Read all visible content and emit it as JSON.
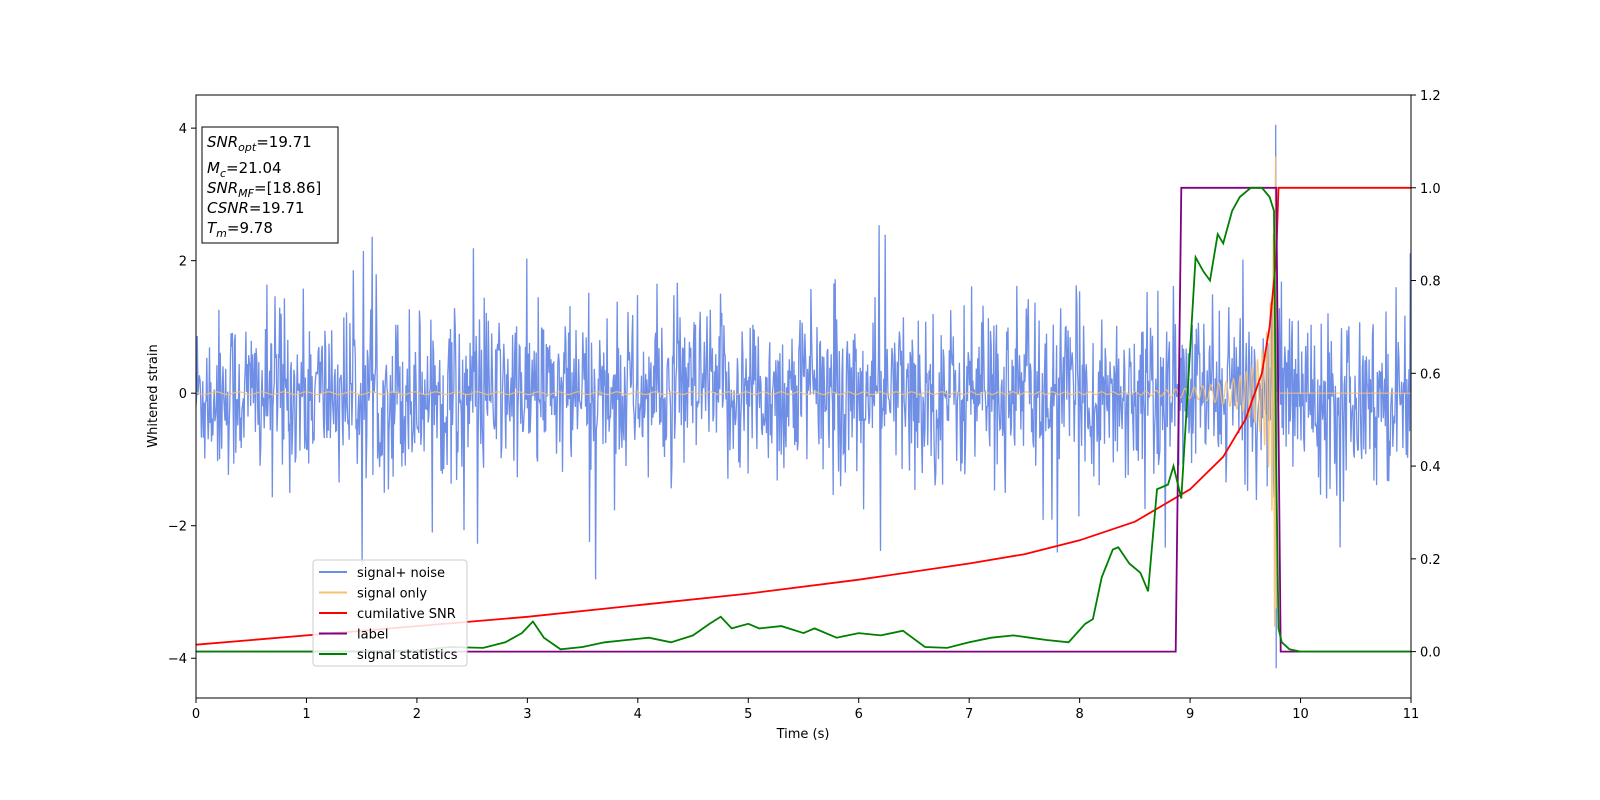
{
  "chart_data": {
    "type": "line",
    "xlabel": "Time (s)",
    "ylabel": "Whitened strain",
    "xlim": [
      0,
      11
    ],
    "ylim": [
      -4.6,
      4.5
    ],
    "y2lim": [
      -0.1,
      1.2
    ],
    "x_ticks": [
      0,
      1,
      2,
      3,
      4,
      5,
      6,
      7,
      8,
      9,
      10,
      11
    ],
    "y_ticks": [
      -4,
      -2,
      0,
      2,
      4
    ],
    "y2_ticks": [
      "0.0",
      "0.2",
      "0.4",
      "0.6",
      "0.8",
      "1.0",
      "1.2"
    ],
    "grid": false,
    "legend_placement": "lower-left",
    "annotation": {
      "lines": [
        {
          "sym": "SNR",
          "sub": "opt",
          "text": "=19.71"
        },
        {
          "sym": "M",
          "sub": "c",
          "text": "=21.04"
        },
        {
          "sym": "SNR",
          "sub": "MF",
          "text": "=[18.86]"
        },
        {
          "sym": "CSNR",
          "sub": "",
          "text": "=19.71"
        },
        {
          "sym": "T",
          "sub": "m",
          "text": "=9.78"
        }
      ]
    },
    "series": [
      {
        "name": "signal+ noise",
        "axis": "left",
        "color": "#6f8ee6",
        "description": "noise band roughly within ±1.5 with spikes up to about ±3.3, peak 4.0 near t=9.78",
        "noise_std": 0.62,
        "peak": {
          "x": 9.78,
          "y": 4.05,
          "min": -4.15
        }
      },
      {
        "name": "signal only",
        "axis": "left",
        "color": "#f5c070",
        "type": "chirp",
        "merger_time": 9.78,
        "start_amplitude": 0.02,
        "peak_amplitude": 3.6
      },
      {
        "name": "cumilative SNR",
        "axis": "right",
        "color": "#ff0000",
        "x": [
          0,
          1,
          2,
          3,
          4,
          5,
          6,
          7,
          7.5,
          8,
          8.5,
          9,
          9.3,
          9.5,
          9.65,
          9.72,
          9.78,
          9.8,
          11
        ],
        "y": [
          0.015,
          0.035,
          0.055,
          0.075,
          0.1,
          0.125,
          0.155,
          0.19,
          0.21,
          0.24,
          0.28,
          0.35,
          0.42,
          0.5,
          0.6,
          0.7,
          0.85,
          1.0,
          1.0
        ]
      },
      {
        "name": "label",
        "axis": "right",
        "color": "#800080",
        "x": [
          0,
          8.87,
          8.92,
          9.78,
          9.82,
          11
        ],
        "y": [
          0,
          0,
          1,
          1,
          0,
          0
        ]
      },
      {
        "name": "signal statistics",
        "axis": "right",
        "color": "#008000",
        "x": [
          0,
          1,
          2,
          2.3,
          2.6,
          2.8,
          2.95,
          3.05,
          3.15,
          3.3,
          3.5,
          3.7,
          3.9,
          4.1,
          4.3,
          4.5,
          4.65,
          4.75,
          4.85,
          5.0,
          5.1,
          5.3,
          5.5,
          5.6,
          5.8,
          6.0,
          6.2,
          6.4,
          6.6,
          6.8,
          7.0,
          7.2,
          7.4,
          7.55,
          7.7,
          7.9,
          8.05,
          8.12,
          8.2,
          8.3,
          8.35,
          8.45,
          8.55,
          8.62,
          8.7,
          8.8,
          8.85,
          8.92,
          9.0,
          9.05,
          9.12,
          9.18,
          9.25,
          9.3,
          9.38,
          9.45,
          9.55,
          9.65,
          9.72,
          9.76,
          9.78,
          9.8,
          9.83,
          9.9,
          10.0,
          11
        ],
        "y": [
          0,
          0,
          0.002,
          0.01,
          0.008,
          0.02,
          0.04,
          0.065,
          0.03,
          0.005,
          0.01,
          0.02,
          0.025,
          0.03,
          0.02,
          0.035,
          0.06,
          0.075,
          0.05,
          0.06,
          0.05,
          0.055,
          0.04,
          0.05,
          0.03,
          0.04,
          0.035,
          0.045,
          0.01,
          0.008,
          0.02,
          0.03,
          0.035,
          0.03,
          0.025,
          0.02,
          0.06,
          0.07,
          0.16,
          0.22,
          0.225,
          0.19,
          0.17,
          0.13,
          0.35,
          0.36,
          0.4,
          0.33,
          0.65,
          0.85,
          0.82,
          0.8,
          0.9,
          0.88,
          0.95,
          0.98,
          1.0,
          1.0,
          0.98,
          0.95,
          0.4,
          0.05,
          0.02,
          0.005,
          0,
          0
        ]
      }
    ]
  }
}
